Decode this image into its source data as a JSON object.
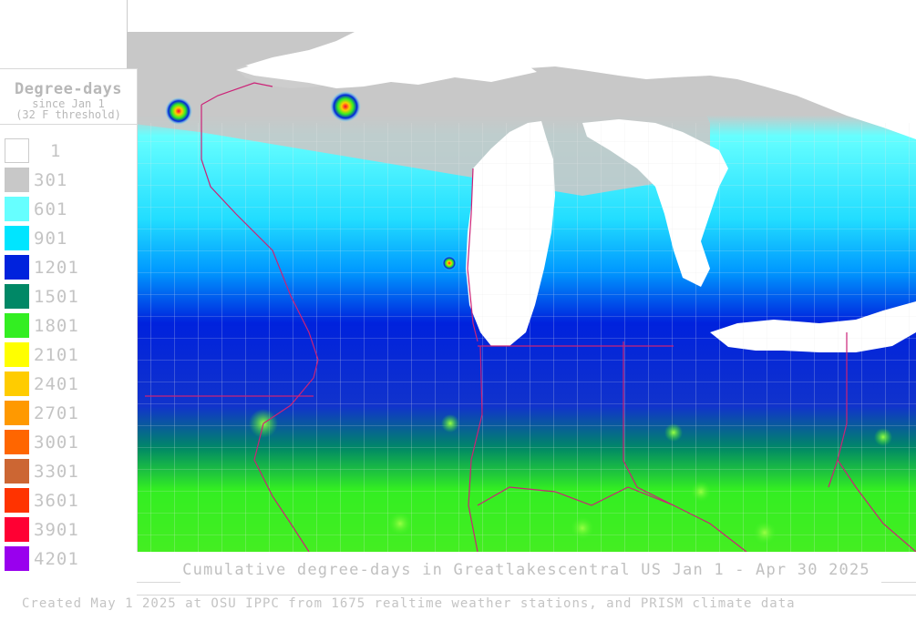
{
  "legend": {
    "title": "Degree-days",
    "subtitle_line1": "since Jan 1",
    "subtitle_line2": "(32 F threshold)",
    "bins": [
      {
        "label": "1",
        "color": "#ffffff"
      },
      {
        "label": "301",
        "color": "#c8c8c8"
      },
      {
        "label": "601",
        "color": "#66ffff"
      },
      {
        "label": "901",
        "color": "#00e5ff"
      },
      {
        "label": "1201",
        "color": "#0022dd"
      },
      {
        "label": "1501",
        "color": "#008866"
      },
      {
        "label": "1801",
        "color": "#33ee22"
      },
      {
        "label": "2101",
        "color": "#ffff00"
      },
      {
        "label": "2401",
        "color": "#ffcc00"
      },
      {
        "label": "2701",
        "color": "#ff9900"
      },
      {
        "label": "3001",
        "color": "#ff6600"
      },
      {
        "label": "3301",
        "color": "#cc6633"
      },
      {
        "label": "3601",
        "color": "#ff3300"
      },
      {
        "label": "3901",
        "color": "#ff0033"
      },
      {
        "label": "4201",
        "color": "#9900ee"
      }
    ]
  },
  "caption": "Cumulative degree-days in Greatlakescentral US Jan 1 - Apr 30 2025",
  "credit": "Created May 1 2025 at OSU IPPC from 1675 realtime weather stations, and PRISM climate data",
  "colors": {
    "boundary_state": "#cc2277",
    "boundary_county": "#e8e8e8",
    "lake": "#ffffff"
  }
}
